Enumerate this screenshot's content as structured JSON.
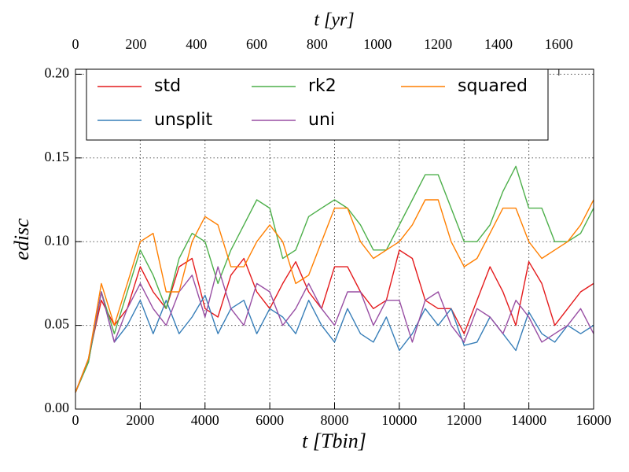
{
  "chart_data": {
    "type": "line",
    "xlabel": "t [Tbin]",
    "ylabel": "edisc",
    "x2label": "t [yr]",
    "x": [
      0,
      400,
      800,
      1200,
      1600,
      2000,
      2400,
      2800,
      3200,
      3600,
      4000,
      4400,
      4800,
      5200,
      5600,
      6000,
      6400,
      6800,
      7200,
      7600,
      8000,
      8400,
      8800,
      9200,
      9600,
      10000,
      10400,
      10800,
      11200,
      11600,
      12000,
      12400,
      12800,
      13200,
      13600,
      14000,
      14400,
      14800,
      15200,
      15600,
      16000
    ],
    "series": [
      {
        "name": "std",
        "color": "#e41a1c",
        "values": [
          0.01,
          0.03,
          0.065,
          0.05,
          0.06,
          0.085,
          0.07,
          0.06,
          0.085,
          0.09,
          0.06,
          0.055,
          0.08,
          0.09,
          0.07,
          0.06,
          0.075,
          0.088,
          0.07,
          0.06,
          0.085,
          0.085,
          0.07,
          0.06,
          0.065,
          0.095,
          0.09,
          0.065,
          0.06,
          0.06,
          0.045,
          0.065,
          0.085,
          0.07,
          0.05,
          0.088,
          0.075,
          0.05,
          0.06,
          0.07,
          0.075
        ]
      },
      {
        "name": "unsplit",
        "color": "#377eb8",
        "values": [
          0.01,
          0.028,
          0.07,
          0.04,
          0.05,
          0.065,
          0.045,
          0.065,
          0.045,
          0.055,
          0.068,
          0.045,
          0.06,
          0.065,
          0.045,
          0.06,
          0.055,
          0.045,
          0.065,
          0.05,
          0.04,
          0.06,
          0.045,
          0.04,
          0.055,
          0.035,
          0.045,
          0.06,
          0.05,
          0.06,
          0.038,
          0.04,
          0.055,
          0.045,
          0.035,
          0.058,
          0.045,
          0.04,
          0.05,
          0.045,
          0.05
        ]
      },
      {
        "name": "rk2",
        "color": "#4daf4a",
        "values": [
          0.01,
          0.028,
          0.07,
          0.045,
          0.07,
          0.095,
          0.08,
          0.06,
          0.09,
          0.105,
          0.1,
          0.075,
          0.095,
          0.11,
          0.125,
          0.12,
          0.09,
          0.095,
          0.115,
          0.12,
          0.125,
          0.12,
          0.11,
          0.095,
          0.095,
          0.11,
          0.125,
          0.14,
          0.14,
          0.12,
          0.1,
          0.1,
          0.11,
          0.13,
          0.145,
          0.12,
          0.12,
          0.1,
          0.1,
          0.105,
          0.12
        ]
      },
      {
        "name": "uni",
        "color": "#984ea3",
        "values": [
          0.01,
          0.03,
          0.07,
          0.04,
          0.06,
          0.075,
          0.06,
          0.05,
          0.07,
          0.08,
          0.055,
          0.085,
          0.06,
          0.05,
          0.075,
          0.07,
          0.05,
          0.06,
          0.075,
          0.06,
          0.05,
          0.07,
          0.07,
          0.05,
          0.065,
          0.065,
          0.04,
          0.065,
          0.07,
          0.05,
          0.04,
          0.06,
          0.055,
          0.045,
          0.065,
          0.055,
          0.04,
          0.045,
          0.05,
          0.06,
          0.045
        ]
      },
      {
        "name": "squared",
        "color": "#ff7f00",
        "values": [
          0.01,
          0.03,
          0.075,
          0.05,
          0.075,
          0.1,
          0.105,
          0.07,
          0.07,
          0.1,
          0.115,
          0.11,
          0.085,
          0.085,
          0.1,
          0.11,
          0.1,
          0.075,
          0.08,
          0.1,
          0.12,
          0.12,
          0.1,
          0.09,
          0.095,
          0.1,
          0.11,
          0.125,
          0.125,
          0.1,
          0.085,
          0.09,
          0.105,
          0.12,
          0.12,
          0.1,
          0.09,
          0.095,
          0.1,
          0.11,
          0.125
        ]
      }
    ],
    "xlim": [
      0,
      16000
    ],
    "xticks": [
      0,
      2000,
      4000,
      6000,
      8000,
      10000,
      12000,
      14000,
      16000
    ],
    "ylim": [
      0,
      0.203
    ],
    "yticks": [
      {
        "value": 0,
        "label": "0.00"
      },
      {
        "value": 0.05,
        "label": "0.05"
      },
      {
        "value": 0.1,
        "label": "0.10"
      },
      {
        "value": 0.15,
        "label": "0.15"
      },
      {
        "value": 0.2,
        "label": "0.20"
      }
    ],
    "x2lim": [
      0,
      1715
    ],
    "x2ticks": [
      0,
      200,
      400,
      600,
      800,
      1000,
      1200,
      1400,
      1600
    ],
    "grid": true,
    "legend": "upper-left",
    "legend_columns": 3
  }
}
